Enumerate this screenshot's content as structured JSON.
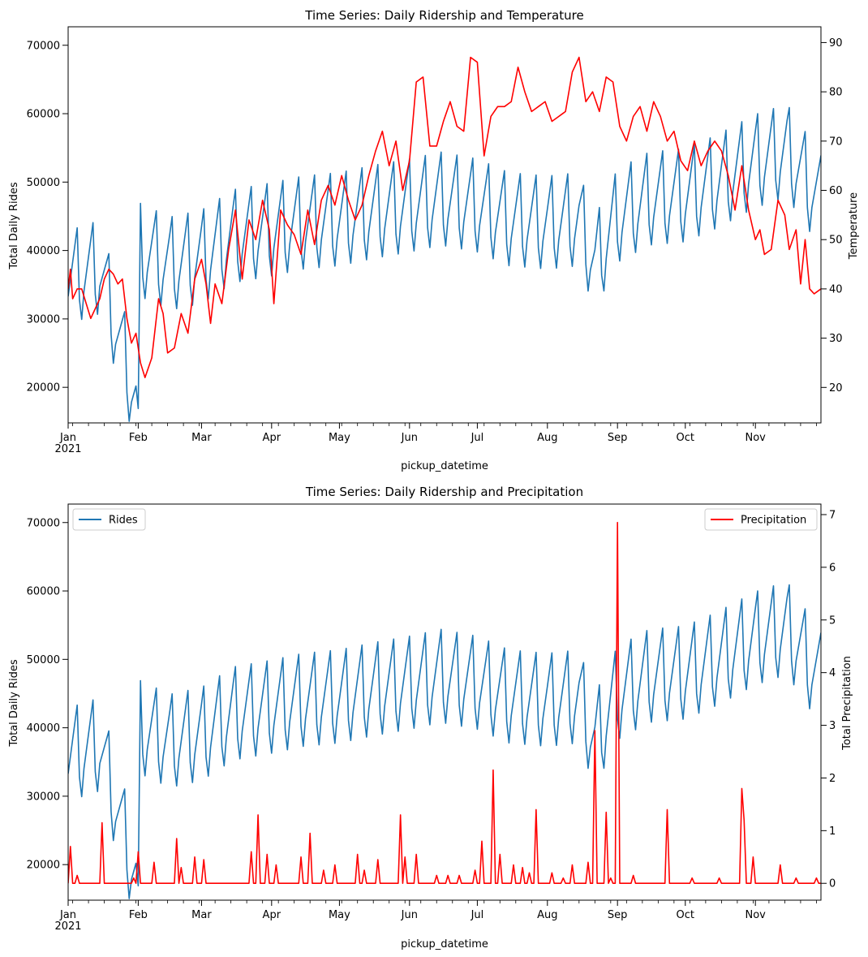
{
  "chart_data": [
    {
      "type": "line",
      "title": "Time Series: Daily Ridership and Temperature",
      "xlabel": "pickup_datetime",
      "ylabel": "Total Daily Rides",
      "y2label": "Temperature",
      "x_range": [
        "2021-01-01",
        "2021-11-30"
      ],
      "x_ticks": [
        "Jan",
        "Feb",
        "Mar",
        "Apr",
        "May",
        "Jun",
        "Jul",
        "Aug",
        "Sep",
        "Oct",
        "Nov"
      ],
      "x_year_label": "2021",
      "ylim": [
        14800,
        72700
      ],
      "y_ticks": [
        20000,
        30000,
        40000,
        50000,
        60000,
        70000
      ],
      "y2lim": [
        12.8,
        93.2
      ],
      "y2_ticks": [
        20,
        30,
        40,
        50,
        60,
        70,
        80,
        90
      ],
      "grid": false,
      "legend": null,
      "series": [
        {
          "axis": "left",
          "color": "#1f77b4",
          "weekly_pattern": [
            0,
            2400,
            4800,
            7200,
            9600,
            -1000,
            -4000
          ],
          "points": [
            [
              "2021-01-01",
              36000
            ],
            [
              "2021-01-15",
              37500
            ],
            [
              "2021-02-01",
              16900
            ],
            [
              "2021-02-02",
              40000
            ],
            [
              "2021-02-15",
              38000
            ],
            [
              "2021-03-01",
              39000
            ],
            [
              "2021-03-15",
              42000
            ],
            [
              "2021-04-01",
              43000
            ],
            [
              "2021-04-15",
              44000
            ],
            [
              "2021-05-01",
              44500
            ],
            [
              "2021-05-15",
              45500
            ],
            [
              "2021-06-01",
              46500
            ],
            [
              "2021-06-15",
              47500
            ],
            [
              "2021-07-01",
              46500
            ],
            [
              "2021-07-15",
              44500
            ],
            [
              "2021-08-01",
              44000
            ],
            [
              "2021-08-15",
              44500
            ],
            [
              "2021-08-22",
              38000
            ],
            [
              "2021-09-01",
              45000
            ],
            [
              "2021-09-15",
              47500
            ],
            [
              "2021-10-01",
              48000
            ],
            [
              "2021-10-15",
              50000
            ],
            [
              "2021-11-01",
              53000
            ],
            [
              "2021-11-15",
              54500
            ],
            [
              "2021-11-30",
              47000
            ]
          ]
        },
        {
          "axis": "right",
          "color": "#ff0000",
          "points": [
            [
              "2021-01-01",
              40
            ],
            [
              "2021-01-02",
              44
            ],
            [
              "2021-01-03",
              38
            ],
            [
              "2021-01-05",
              40
            ],
            [
              "2021-01-07",
              40
            ],
            [
              "2021-01-09",
              37
            ],
            [
              "2021-01-11",
              34
            ],
            [
              "2021-01-13",
              36
            ],
            [
              "2021-01-15",
              38
            ],
            [
              "2021-01-17",
              42
            ],
            [
              "2021-01-19",
              44
            ],
            [
              "2021-01-21",
              43
            ],
            [
              "2021-01-23",
              41
            ],
            [
              "2021-01-25",
              42
            ],
            [
              "2021-01-27",
              34
            ],
            [
              "2021-01-29",
              29
            ],
            [
              "2021-01-31",
              31
            ],
            [
              "2021-02-02",
              25
            ],
            [
              "2021-02-04",
              22
            ],
            [
              "2021-02-07",
              26
            ],
            [
              "2021-02-10",
              38
            ],
            [
              "2021-02-12",
              35
            ],
            [
              "2021-02-14",
              27
            ],
            [
              "2021-02-17",
              28
            ],
            [
              "2021-02-20",
              35
            ],
            [
              "2021-02-23",
              31
            ],
            [
              "2021-02-26",
              42
            ],
            [
              "2021-03-01",
              46
            ],
            [
              "2021-03-03",
              41
            ],
            [
              "2021-03-05",
              33
            ],
            [
              "2021-03-07",
              41
            ],
            [
              "2021-03-10",
              37
            ],
            [
              "2021-03-13",
              48
            ],
            [
              "2021-03-16",
              56
            ],
            [
              "2021-03-19",
              42
            ],
            [
              "2021-03-22",
              54
            ],
            [
              "2021-03-25",
              50
            ],
            [
              "2021-03-28",
              58
            ],
            [
              "2021-03-31",
              52
            ],
            [
              "2021-04-02",
              37
            ],
            [
              "2021-04-05",
              56
            ],
            [
              "2021-04-08",
              53
            ],
            [
              "2021-04-11",
              51
            ],
            [
              "2021-04-14",
              47
            ],
            [
              "2021-04-17",
              56
            ],
            [
              "2021-04-20",
              49
            ],
            [
              "2021-04-23",
              58
            ],
            [
              "2021-04-26",
              61
            ],
            [
              "2021-04-29",
              57
            ],
            [
              "2021-05-02",
              63
            ],
            [
              "2021-05-05",
              58
            ],
            [
              "2021-05-08",
              54
            ],
            [
              "2021-05-11",
              57
            ],
            [
              "2021-05-14",
              63
            ],
            [
              "2021-05-17",
              68
            ],
            [
              "2021-05-20",
              72
            ],
            [
              "2021-05-23",
              65
            ],
            [
              "2021-05-26",
              70
            ],
            [
              "2021-05-29",
              60
            ],
            [
              "2021-06-01",
              66
            ],
            [
              "2021-06-04",
              82
            ],
            [
              "2021-06-07",
              83
            ],
            [
              "2021-06-10",
              69
            ],
            [
              "2021-06-13",
              69
            ],
            [
              "2021-06-16",
              74
            ],
            [
              "2021-06-19",
              78
            ],
            [
              "2021-06-22",
              73
            ],
            [
              "2021-06-25",
              72
            ],
            [
              "2021-06-28",
              87
            ],
            [
              "2021-07-01",
              86
            ],
            [
              "2021-07-04",
              67
            ],
            [
              "2021-07-07",
              75
            ],
            [
              "2021-07-10",
              77
            ],
            [
              "2021-07-13",
              77
            ],
            [
              "2021-07-16",
              78
            ],
            [
              "2021-07-19",
              85
            ],
            [
              "2021-07-22",
              80
            ],
            [
              "2021-07-25",
              76
            ],
            [
              "2021-07-28",
              77
            ],
            [
              "2021-07-31",
              78
            ],
            [
              "2021-08-03",
              74
            ],
            [
              "2021-08-06",
              75
            ],
            [
              "2021-08-09",
              76
            ],
            [
              "2021-08-12",
              84
            ],
            [
              "2021-08-15",
              87
            ],
            [
              "2021-08-18",
              78
            ],
            [
              "2021-08-21",
              80
            ],
            [
              "2021-08-24",
              76
            ],
            [
              "2021-08-27",
              83
            ],
            [
              "2021-08-30",
              82
            ],
            [
              "2021-09-02",
              73
            ],
            [
              "2021-09-05",
              70
            ],
            [
              "2021-09-08",
              75
            ],
            [
              "2021-09-11",
              77
            ],
            [
              "2021-09-14",
              72
            ],
            [
              "2021-09-17",
              78
            ],
            [
              "2021-09-20",
              75
            ],
            [
              "2021-09-23",
              70
            ],
            [
              "2021-09-26",
              72
            ],
            [
              "2021-09-29",
              66
            ],
            [
              "2021-10-02",
              64
            ],
            [
              "2021-10-05",
              70
            ],
            [
              "2021-10-08",
              65
            ],
            [
              "2021-10-11",
              68
            ],
            [
              "2021-10-14",
              70
            ],
            [
              "2021-10-17",
              68
            ],
            [
              "2021-10-20",
              63
            ],
            [
              "2021-10-23",
              56
            ],
            [
              "2021-10-26",
              65
            ],
            [
              "2021-10-29",
              56
            ],
            [
              "2021-11-01",
              50
            ],
            [
              "2021-11-03",
              52
            ],
            [
              "2021-11-05",
              47
            ],
            [
              "2021-11-08",
              48
            ],
            [
              "2021-11-11",
              58
            ],
            [
              "2021-11-14",
              55
            ],
            [
              "2021-11-16",
              48
            ],
            [
              "2021-11-19",
              52
            ],
            [
              "2021-11-21",
              41
            ],
            [
              "2021-11-23",
              50
            ],
            [
              "2021-11-25",
              40
            ],
            [
              "2021-11-27",
              39
            ],
            [
              "2021-11-30",
              40
            ]
          ]
        }
      ]
    },
    {
      "type": "line",
      "title": "Time Series: Daily Ridership and Precipitation",
      "xlabel": "pickup_datetime",
      "ylabel": "Total Daily Rides",
      "y2label": "Total Precipitation",
      "x_range": [
        "2021-01-01",
        "2021-11-30"
      ],
      "x_ticks": [
        "Jan",
        "Feb",
        "Mar",
        "Apr",
        "May",
        "Jun",
        "Jul",
        "Aug",
        "Sep",
        "Oct",
        "Nov"
      ],
      "x_year_label": "2021",
      "ylim": [
        14800,
        72700
      ],
      "y_ticks": [
        20000,
        30000,
        40000,
        50000,
        60000,
        70000
      ],
      "y2lim": [
        -0.32,
        7.2
      ],
      "y2_ticks": [
        0,
        1,
        2,
        3,
        4,
        5,
        6,
        7
      ],
      "grid": false,
      "legend_placement": [
        "top-left",
        "top-right"
      ],
      "series": [
        {
          "name": "Rides",
          "axis": "left",
          "color": "#1f77b4",
          "same_as": "chart_data.0.series.0",
          "legend_position": "top-left"
        },
        {
          "name": "Precipitation",
          "axis": "right",
          "color": "#ff0000",
          "legend_position": "top-right",
          "baseline": 0,
          "spikes": [
            [
              "2021-01-02",
              0.7
            ],
            [
              "2021-01-05",
              0.15
            ],
            [
              "2021-01-16",
              1.15
            ],
            [
              "2021-01-30",
              0.1
            ],
            [
              "2021-02-01",
              0.6
            ],
            [
              "2021-02-08",
              0.4
            ],
            [
              "2021-02-18",
              0.85
            ],
            [
              "2021-02-20",
              0.3
            ],
            [
              "2021-02-26",
              0.5
            ],
            [
              "2021-03-02",
              0.45
            ],
            [
              "2021-03-23",
              0.6
            ],
            [
              "2021-03-26",
              1.3
            ],
            [
              "2021-03-30",
              0.55
            ],
            [
              "2021-04-03",
              0.35
            ],
            [
              "2021-04-14",
              0.5
            ],
            [
              "2021-04-18",
              0.95
            ],
            [
              "2021-04-24",
              0.25
            ],
            [
              "2021-04-29",
              0.35
            ],
            [
              "2021-05-09",
              0.55
            ],
            [
              "2021-05-12",
              0.25
            ],
            [
              "2021-05-18",
              0.45
            ],
            [
              "2021-05-28",
              1.3
            ],
            [
              "2021-05-30",
              0.5
            ],
            [
              "2021-06-04",
              0.55
            ],
            [
              "2021-06-13",
              0.15
            ],
            [
              "2021-06-18",
              0.15
            ],
            [
              "2021-06-23",
              0.15
            ],
            [
              "2021-06-30",
              0.25
            ],
            [
              "2021-07-03",
              0.8
            ],
            [
              "2021-07-08",
              2.15
            ],
            [
              "2021-07-11",
              0.55
            ],
            [
              "2021-07-17",
              0.35
            ],
            [
              "2021-07-21",
              0.3
            ],
            [
              "2021-07-24",
              0.2
            ],
            [
              "2021-07-27",
              1.4
            ],
            [
              "2021-08-03",
              0.2
            ],
            [
              "2021-08-08",
              0.1
            ],
            [
              "2021-08-12",
              0.35
            ],
            [
              "2021-08-19",
              0.4
            ],
            [
              "2021-08-22",
              2.9
            ],
            [
              "2021-08-27",
              1.35
            ],
            [
              "2021-08-29",
              0.1
            ],
            [
              "2021-09-01",
              6.85
            ],
            [
              "2021-09-08",
              0.15
            ],
            [
              "2021-09-23",
              1.4
            ],
            [
              "2021-10-04",
              0.1
            ],
            [
              "2021-10-16",
              0.1
            ],
            [
              "2021-10-26",
              1.8
            ],
            [
              "2021-10-27",
              1.2
            ],
            [
              "2021-10-31",
              0.5
            ],
            [
              "2021-11-12",
              0.35
            ],
            [
              "2021-11-19",
              0.1
            ],
            [
              "2021-11-28",
              0.1
            ]
          ]
        }
      ]
    }
  ]
}
